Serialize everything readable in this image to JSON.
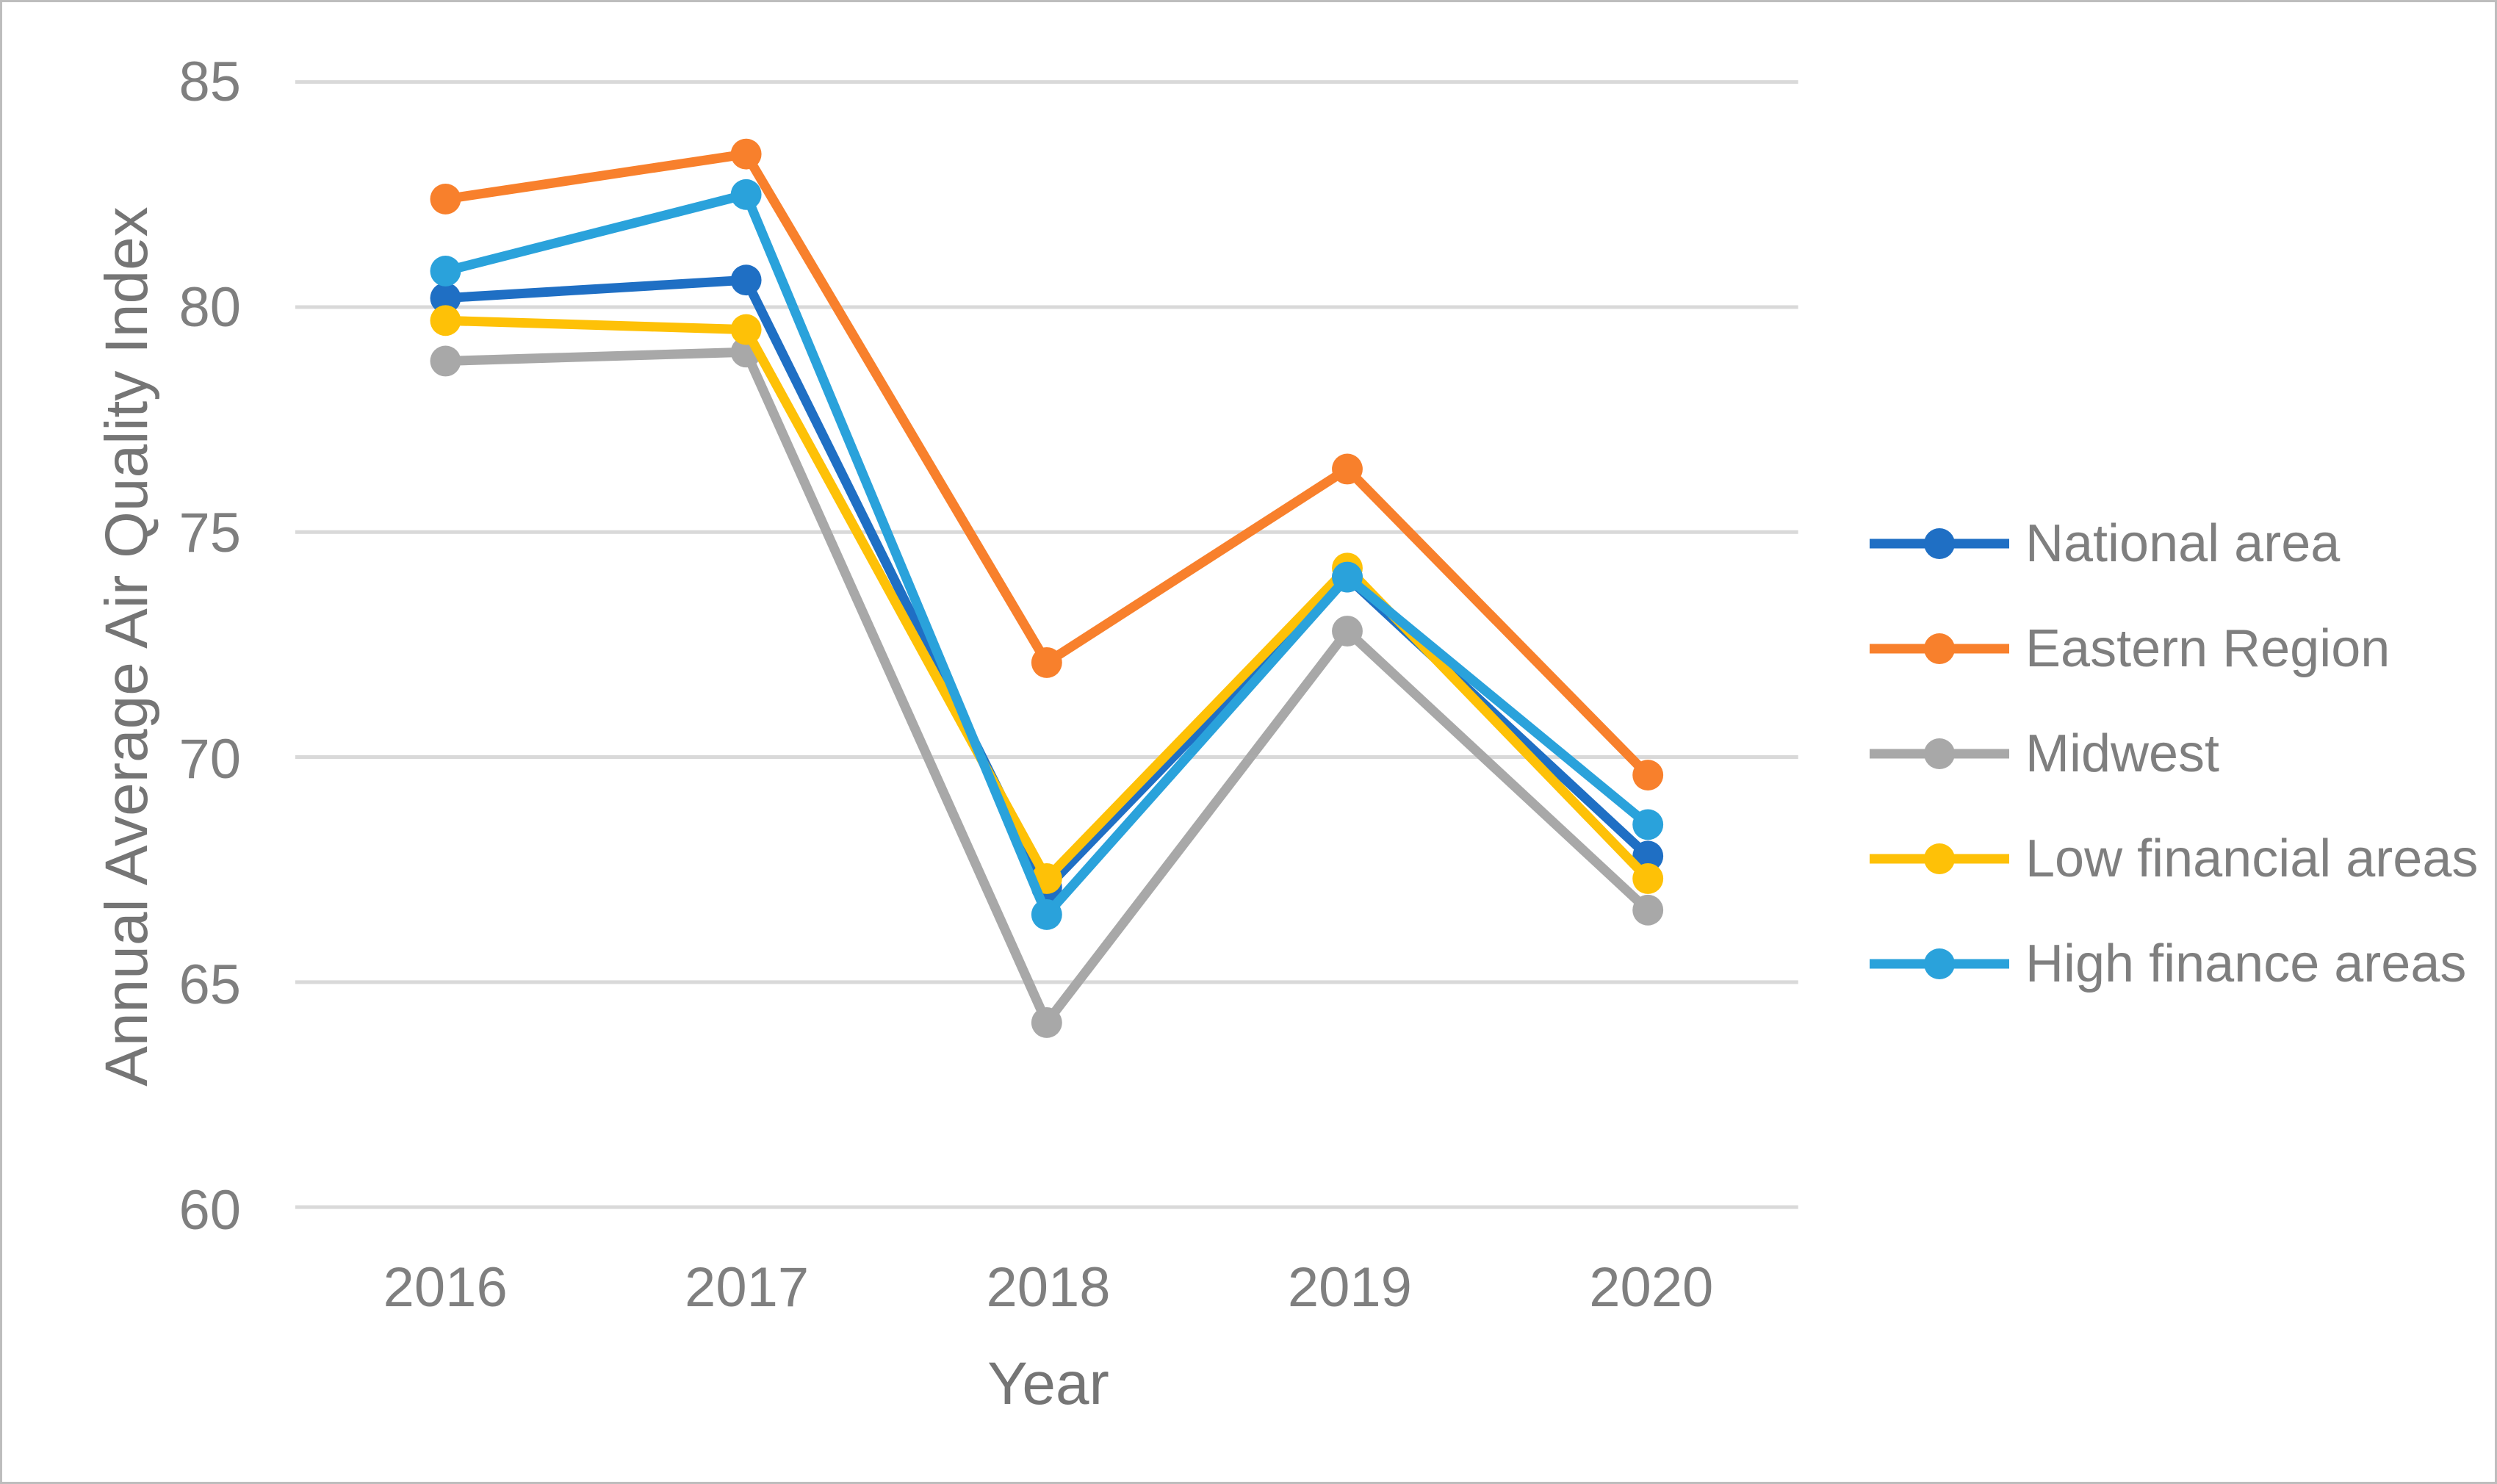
{
  "figure": {
    "background": "#ffffff",
    "border_color": "#bdbdbd"
  },
  "chart_data": {
    "type": "line",
    "title": "",
    "xlabel": "Year",
    "ylabel": "Annual Average Air Quality Index",
    "categories": [
      "2016",
      "2017",
      "2018",
      "2019",
      "2020"
    ],
    "y_ticks": [
      85,
      80,
      75,
      70,
      65,
      60
    ],
    "ylim": [
      60,
      85
    ],
    "grid": true,
    "gridline_color": "#d9d9d9",
    "text_color": "#7f7f7f",
    "legend_position": "right",
    "series": [
      {
        "name": "National area",
        "color": "#1f6fc4",
        "values": [
          80.2,
          80.6,
          67.1,
          74.0,
          67.8
        ]
      },
      {
        "name": "Eastern Region",
        "color": "#f8802c",
        "values": [
          82.4,
          83.4,
          72.1,
          76.4,
          69.6
        ]
      },
      {
        "name": "Midwest",
        "color": "#a8a8a8",
        "values": [
          78.8,
          79.0,
          64.1,
          72.8,
          66.6
        ]
      },
      {
        "name": "Low financial areas",
        "color": "#fec107",
        "values": [
          79.7,
          79.5,
          67.3,
          74.2,
          67.3
        ]
      },
      {
        "name": "High finance areas",
        "color": "#2aa2db",
        "values": [
          80.8,
          82.5,
          66.5,
          74.0,
          68.5
        ]
      }
    ]
  }
}
